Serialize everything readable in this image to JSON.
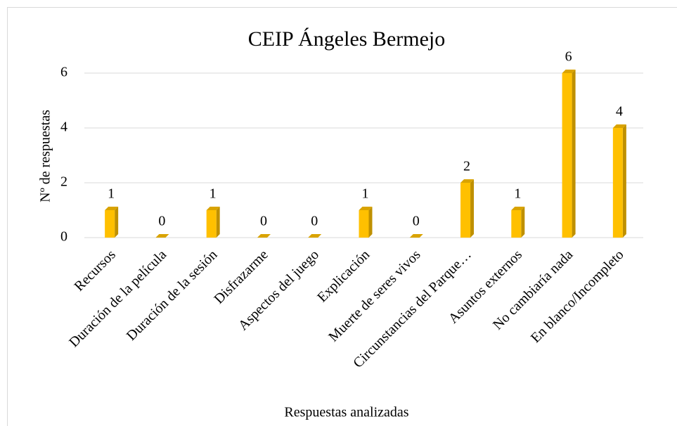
{
  "chart_data": {
    "type": "bar",
    "title": "CEIP Ángeles Bermejo",
    "x_label": "Respuestas analizadas",
    "y_label": "Nº de respuestas",
    "categories": [
      "Recursos",
      "Duración de la película",
      "Duración de la sesión",
      "Disfrazarme",
      "Aspectos del juego",
      "Explicación",
      "Muerte de seres vivos",
      "Circunstancias del Parque…",
      "Asuntos externos",
      "No cambiaría nada",
      "En blanco/Incompleto"
    ],
    "values": [
      1,
      0,
      1,
      0,
      0,
      1,
      0,
      2,
      1,
      6,
      4
    ],
    "color": "#ffc000",
    "ylim": [
      0,
      6
    ],
    "yticks": [
      0,
      2,
      4,
      6
    ],
    "grid": true
  }
}
